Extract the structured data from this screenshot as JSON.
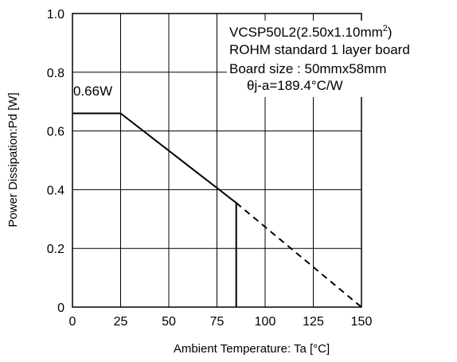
{
  "chart_data": {
    "type": "line",
    "title": "",
    "xlabel": "Ambient Temperature: Ta [°C]",
    "ylabel": "Power Dissipation:Pd [W]",
    "xlim": [
      0,
      150
    ],
    "ylim": [
      0,
      1.0
    ],
    "x_ticks": [
      "0",
      "25",
      "50",
      "75",
      "100",
      "125",
      "150"
    ],
    "y_ticks": [
      "0",
      "0.2",
      "0.4",
      "0.6",
      "0.8",
      "1.0"
    ],
    "grid": true,
    "series": [
      {
        "style": "solid",
        "x": [
          0,
          25,
          85,
          85
        ],
        "y": [
          0.66,
          0.66,
          0.355,
          0
        ]
      },
      {
        "style": "dashed",
        "x": [
          85,
          150
        ],
        "y": [
          0.355,
          0
        ]
      }
    ],
    "annotations": {
      "point_label": "0.66W",
      "package_main": "VCSP50L2(2.50x1.10mm",
      "package_sup": "2",
      "package_close": ")",
      "board": "ROHM standard 1 layer board",
      "board_size": "Board size : 50mmx58mm",
      "theta": "θj-a=189.4°C/W"
    }
  }
}
